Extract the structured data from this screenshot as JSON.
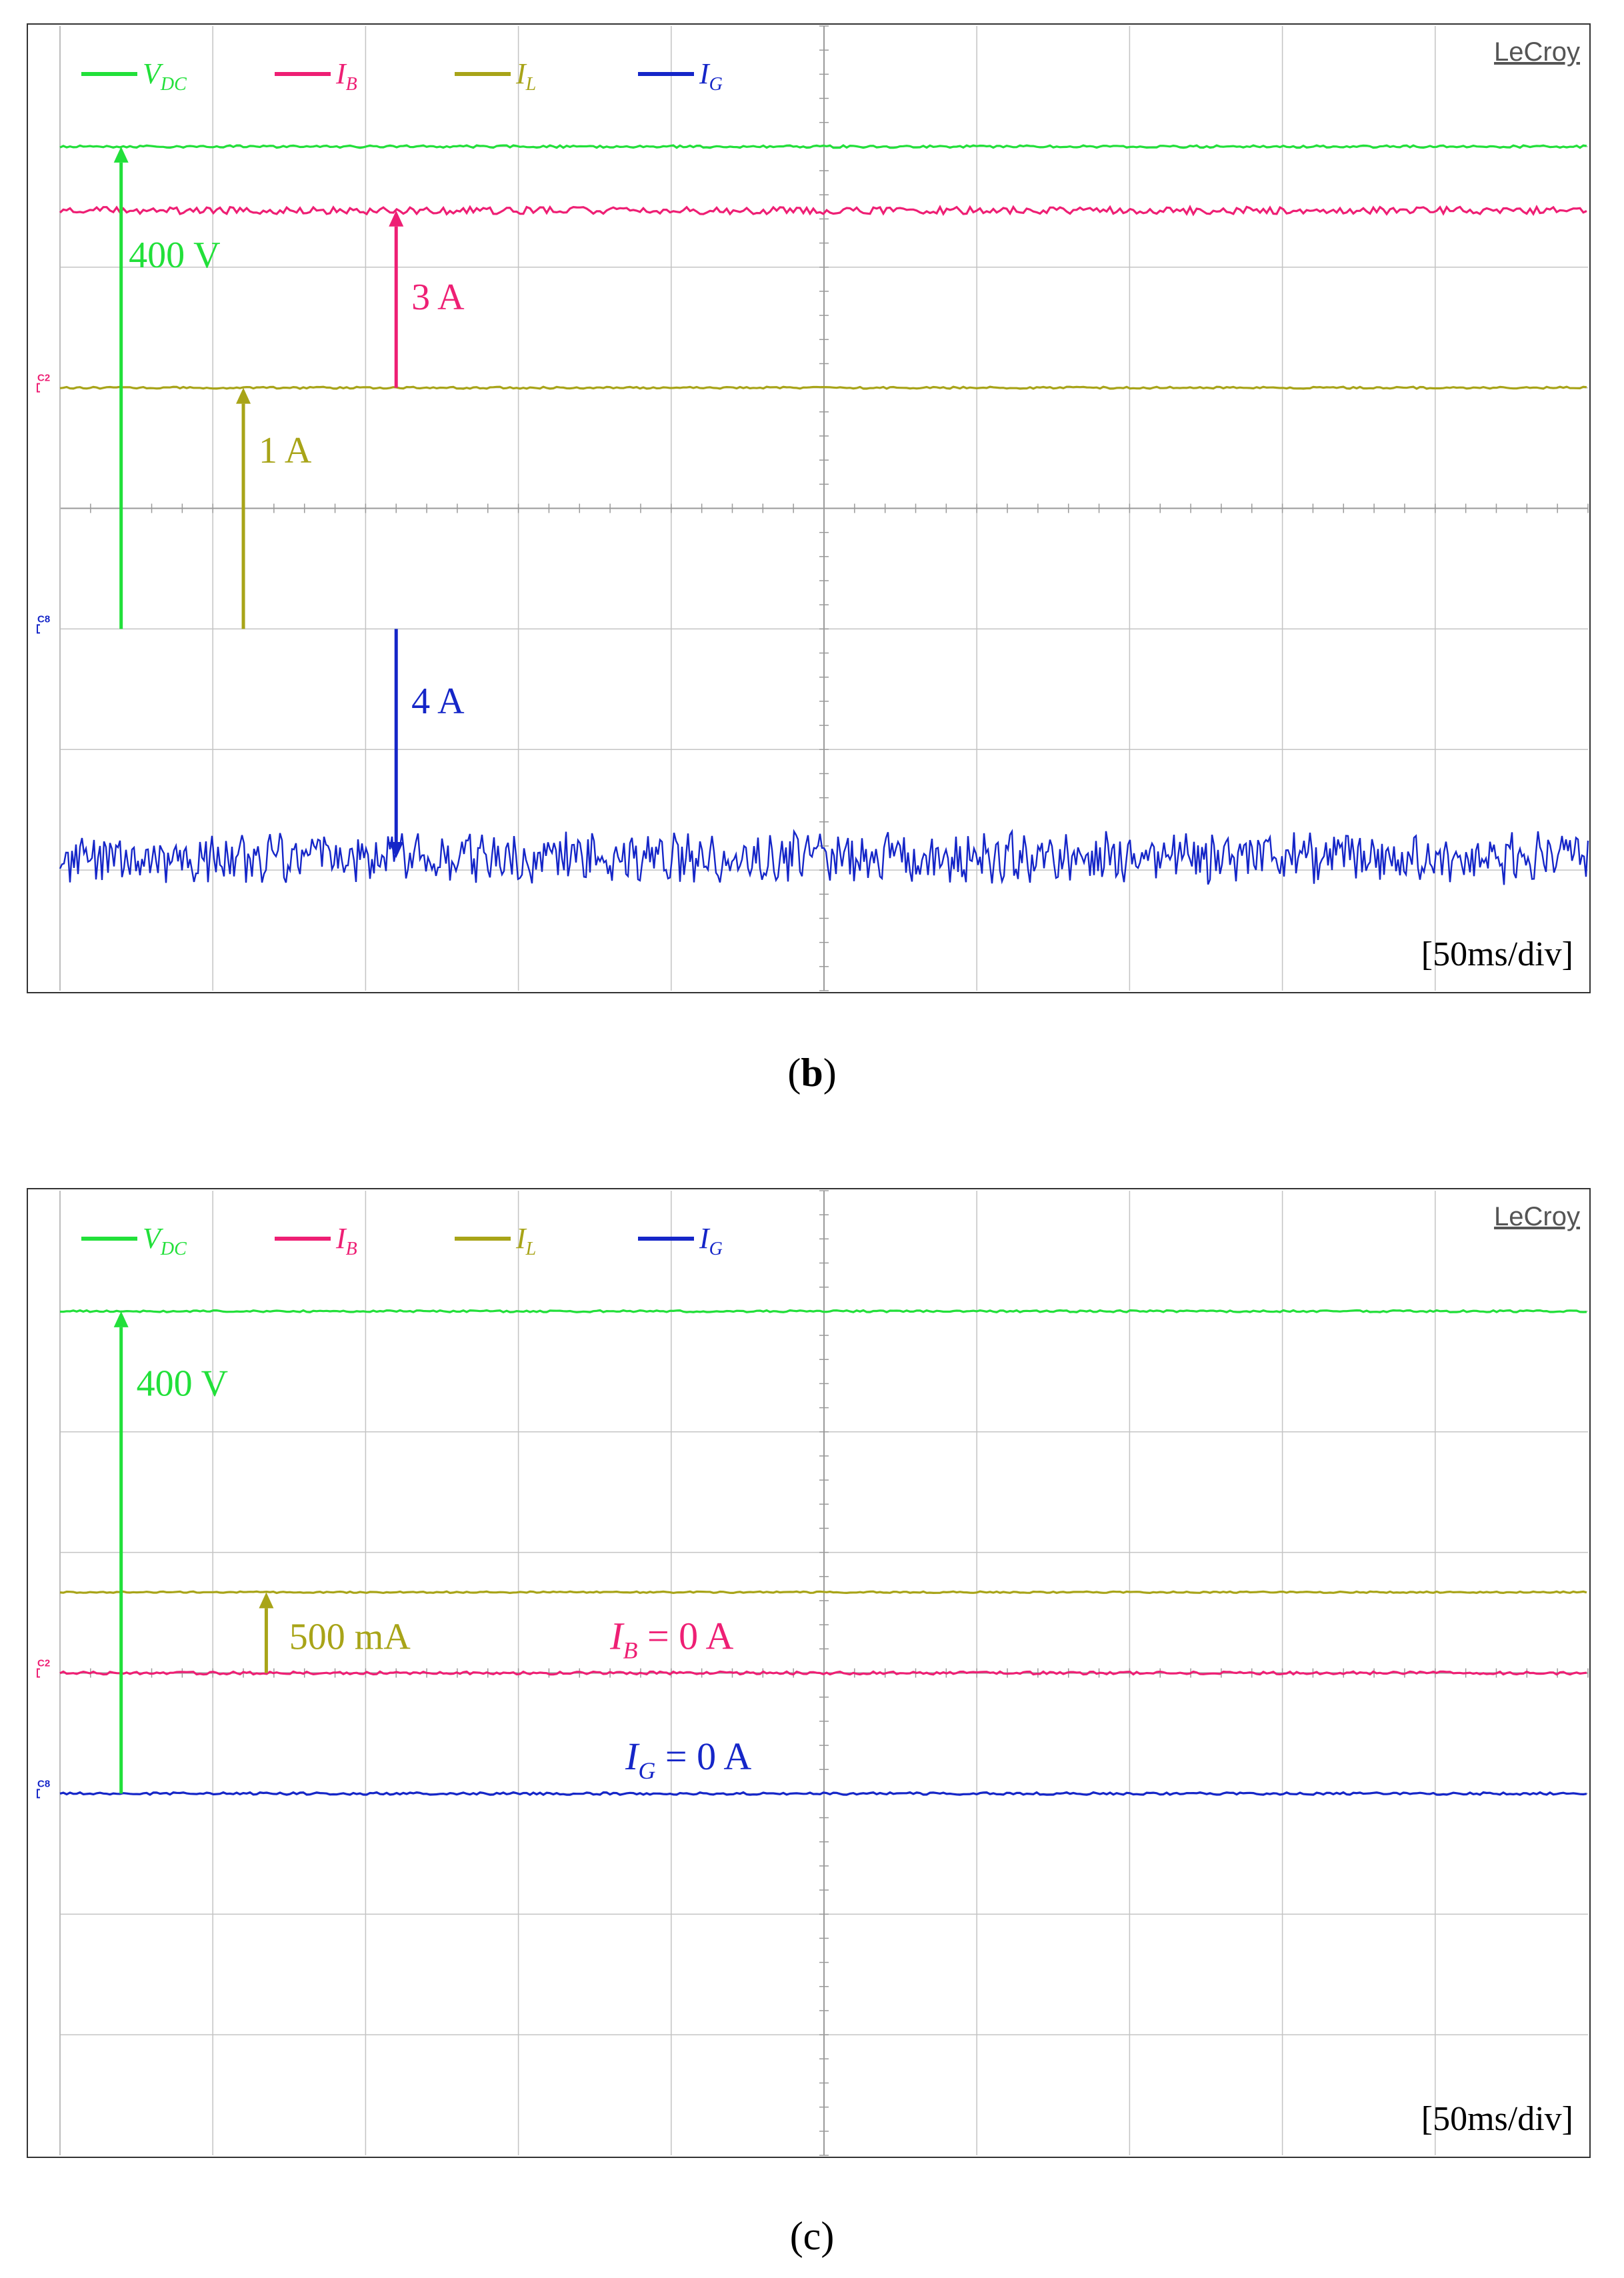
{
  "panels": [
    {
      "id": "b",
      "caption_letter": "b",
      "brand": "LeCroy",
      "timebase": "[50ms/div]",
      "legend": [
        {
          "sym": "V",
          "sub": "DC",
          "color": "#22e03a"
        },
        {
          "sym": "I",
          "sub": "B",
          "color": "#ee1f74"
        },
        {
          "sym": "I",
          "sub": "L",
          "color": "#a8a418"
        },
        {
          "sym": "I",
          "sub": "G",
          "color": "#1526c8"
        }
      ],
      "channel_markers": [
        {
          "text": "C2",
          "color": "#ee1f74",
          "level_div": 5.0
        },
        {
          "text": "C8",
          "color": "#1526c8",
          "level_div": 3.0
        }
      ],
      "traces": [
        {
          "series": "V_DC",
          "color": "#22e03a",
          "level_div": 7.0,
          "noise": 0.01
        },
        {
          "series": "I_B",
          "color": "#ee1f74",
          "level_div": 6.47,
          "noise": 0.03
        },
        {
          "series": "I_L",
          "color": "#a8a418",
          "level_div": 5.0,
          "noise": 0.008
        },
        {
          "series": "I_G",
          "color": "#1526c8",
          "level_div": 1.1,
          "noise": 0.18
        }
      ],
      "annotations": [
        {
          "text": "400 V",
          "color": "#22e03a",
          "x_div": 0.4,
          "from_div": 3.0,
          "to_div": 7.0,
          "dir": "up",
          "label_x_div": 0.45,
          "label_y_div": 6.0
        },
        {
          "text": "3 A",
          "color": "#ee1f74",
          "x_div": 2.2,
          "from_div": 5.0,
          "to_div": 6.47,
          "dir": "up",
          "label_x_div": 2.3,
          "label_y_div": 5.65
        },
        {
          "text": "1 A",
          "color": "#a8a418",
          "x_div": 1.2,
          "from_div": 3.0,
          "to_div": 5.0,
          "dir": "up",
          "label_x_div": 1.3,
          "label_y_div": 4.38
        },
        {
          "text": "4 A",
          "color": "#1526c8",
          "x_div": 2.2,
          "from_div": 3.0,
          "to_div": 1.1,
          "dir": "down",
          "label_x_div": 2.3,
          "label_y_div": 2.3
        }
      ]
    },
    {
      "id": "c",
      "caption_letter": "c",
      "brand": "LeCroy",
      "timebase": "[50ms/div]",
      "legend": [
        {
          "sym": "V",
          "sub": "DC",
          "color": "#22e03a"
        },
        {
          "sym": "I",
          "sub": "B",
          "color": "#ee1f74"
        },
        {
          "sym": "I",
          "sub": "L",
          "color": "#a8a418"
        },
        {
          "sym": "I",
          "sub": "G",
          "color": "#1526c8"
        }
      ],
      "channel_markers": [
        {
          "text": "C2",
          "color": "#ee1f74",
          "level_div": 4.0
        },
        {
          "text": "C8",
          "color": "#1526c8",
          "level_div": 3.0
        }
      ],
      "traces": [
        {
          "series": "V_DC",
          "color": "#22e03a",
          "level_div": 7.0,
          "noise": 0.008
        },
        {
          "series": "I_L",
          "color": "#a8a418",
          "level_div": 4.67,
          "noise": 0.006
        },
        {
          "series": "I_B",
          "color": "#ee1f74",
          "level_div": 4.0,
          "noise": 0.012
        },
        {
          "series": "I_G",
          "color": "#1526c8",
          "level_div": 3.0,
          "noise": 0.01
        }
      ],
      "annotations": [
        {
          "text": "400 V",
          "color": "#22e03a",
          "x_div": 0.4,
          "from_div": 3.0,
          "to_div": 7.0,
          "dir": "up",
          "label_x_div": 0.5,
          "label_y_div": 6.3
        },
        {
          "text": "500 mA",
          "color": "#a8a418",
          "x_div": 1.35,
          "from_div": 4.0,
          "to_div": 4.67,
          "dir": "up",
          "label_x_div": 1.5,
          "label_y_div": 4.2
        }
      ],
      "value_labels": [
        {
          "sym": "I",
          "sub": "B",
          "value": " = 0 A",
          "color": "#ee1f74",
          "x_div": 3.6,
          "y_div": 4.2
        },
        {
          "sym": "I",
          "sub": "G",
          "value": " = 0 A",
          "color": "#1526c8",
          "x_div": 3.7,
          "y_div": 3.2
        }
      ]
    }
  ],
  "chart_data": [
    {
      "type": "line",
      "title": "",
      "grid": true,
      "x_divisions": 10,
      "y_divisions": 8,
      "timebase": "50ms/div",
      "legend_placement": "top-left",
      "series": [
        {
          "name": "V_DC",
          "level_div": 7.0,
          "value": "400 V"
        },
        {
          "name": "I_B",
          "level_div": 6.47,
          "value": "3 A"
        },
        {
          "name": "I_L",
          "level_div": 5.0,
          "value": "1 A"
        },
        {
          "name": "I_G",
          "level_div": 1.1,
          "value": "4 A"
        }
      ]
    },
    {
      "type": "line",
      "title": "",
      "grid": true,
      "x_divisions": 10,
      "y_divisions": 8,
      "timebase": "50ms/div",
      "legend_placement": "top-left",
      "series": [
        {
          "name": "V_DC",
          "level_div": 7.0,
          "value": "400 V"
        },
        {
          "name": "I_L",
          "level_div": 4.67,
          "value": "500 mA"
        },
        {
          "name": "I_B",
          "level_div": 4.0,
          "value": "0 A"
        },
        {
          "name": "I_G",
          "level_div": 3.0,
          "value": "0 A"
        }
      ]
    }
  ]
}
